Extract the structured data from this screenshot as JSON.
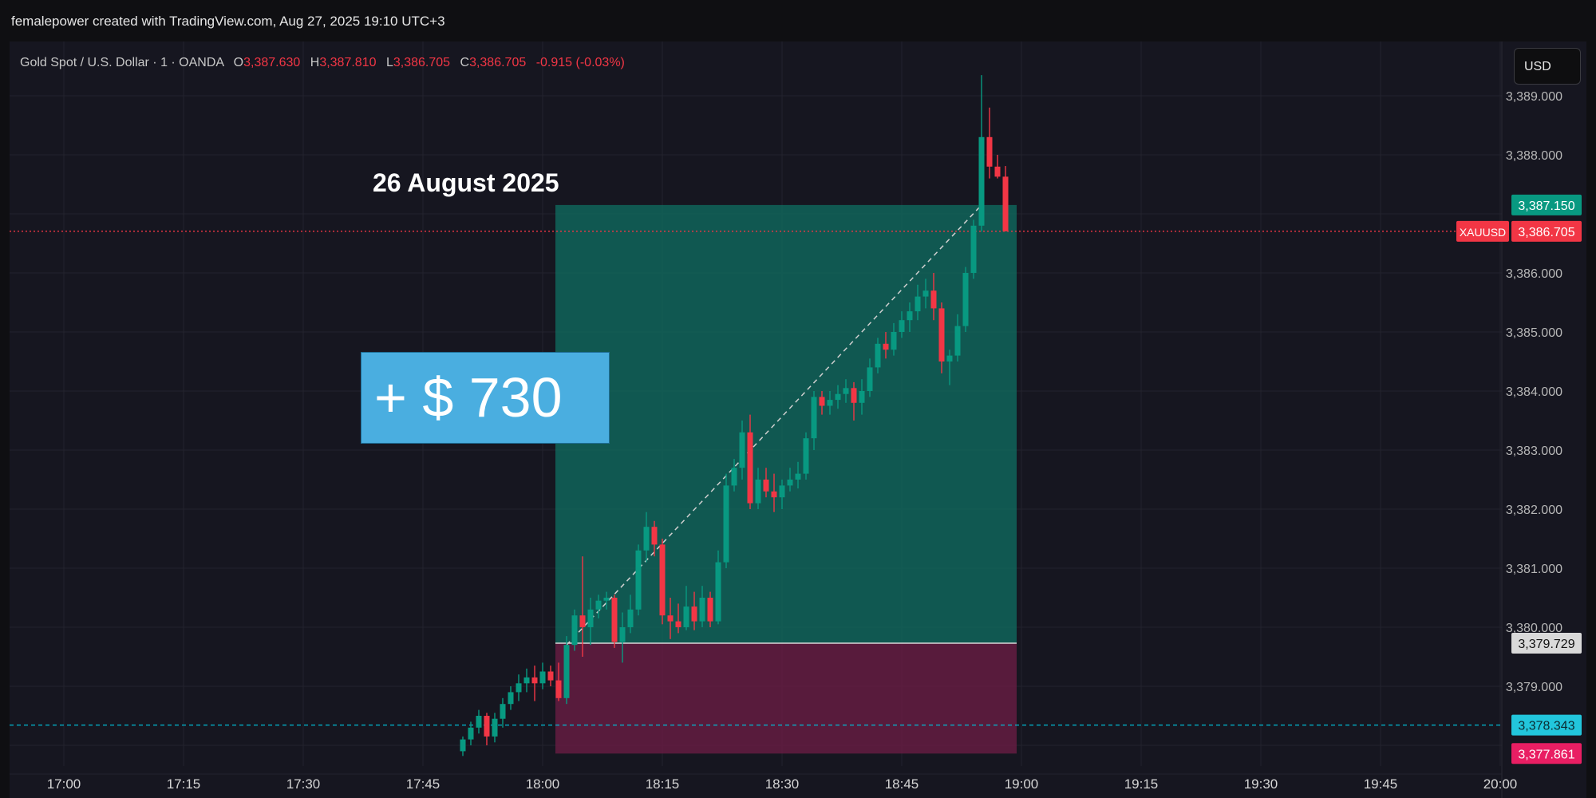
{
  "header": {
    "credit": "femalepower created with TradingView.com, Aug 27, 2025 19:10 UTC+3"
  },
  "legend": {
    "symbol": "Gold Spot / U.S. Dollar · 1 · OANDA",
    "o_label": "O",
    "o_value": "3,387.630",
    "h_label": "H",
    "h_value": "3,387.810",
    "l_label": "L",
    "l_value": "3,386.705",
    "c_label": "C",
    "c_value": "3,386.705",
    "change": "-0.915 (-0.03%)"
  },
  "currency_button": "USD",
  "annotations": {
    "date_title": "26 August 2025",
    "profit_badge": "+ $ 730"
  },
  "colors": {
    "up": "#089981",
    "down": "#f23645",
    "profit_zone": "#0f6b5f",
    "loss_zone": "#6b1e44",
    "cyan_line": "#00bcd4",
    "magenta_label": "#e91e63"
  },
  "chart_data": {
    "type": "candlestick",
    "symbol": "XAUUSD",
    "x_ticks": [
      "17:00",
      "17:15",
      "17:30",
      "17:45",
      "18:00",
      "18:15",
      "18:30",
      "18:45",
      "19:00",
      "19:15",
      "19:30",
      "19:45",
      "20:00"
    ],
    "y_ticks": [
      "3,389.000",
      "3,388.000",
      "3,386.000",
      "3,385.000",
      "3,384.000",
      "3,383.000",
      "3,382.000",
      "3,381.000",
      "3,380.000",
      "3,379.000"
    ],
    "ylim": [
      3377.7,
      3389.6
    ],
    "price_labels": [
      {
        "text": "3,387.150",
        "value": 3387.15,
        "style": "up"
      },
      {
        "text": "3,386.705",
        "value": 3386.705,
        "style": "down",
        "tag": "XAUUSD"
      },
      {
        "text": "3,379.729",
        "value": 3379.729,
        "style": "neutral"
      },
      {
        "text": "3,378.343",
        "value": 3378.343,
        "style": "cyan"
      },
      {
        "text": "3,377.861",
        "value": 3377.861,
        "style": "magenta"
      }
    ],
    "position": {
      "type": "long",
      "entry": 3379.729,
      "target": 3387.15,
      "stop": 3377.861,
      "start_time": "18:02",
      "end_time": "18:59"
    },
    "reference_lines": [
      {
        "name": "last-price",
        "value": 3386.705,
        "style": "red-dotted"
      },
      {
        "name": "cyan-level",
        "value": 3378.343,
        "style": "cyan-dashed"
      }
    ],
    "candles": [
      [
        "17:50",
        3377.9,
        3378.15,
        3377.82,
        3378.1
      ],
      [
        "17:51",
        3378.1,
        3378.4,
        3378.0,
        3378.3
      ],
      [
        "17:52",
        3378.3,
        3378.6,
        3378.2,
        3378.5
      ],
      [
        "17:53",
        3378.5,
        3378.55,
        3378.0,
        3378.15
      ],
      [
        "17:54",
        3378.15,
        3378.55,
        3378.05,
        3378.45
      ],
      [
        "17:55",
        3378.45,
        3378.8,
        3378.3,
        3378.7
      ],
      [
        "17:56",
        3378.7,
        3379.0,
        3378.6,
        3378.9
      ],
      [
        "17:57",
        3378.9,
        3379.2,
        3378.75,
        3379.05
      ],
      [
        "17:58",
        3379.05,
        3379.3,
        3378.9,
        3379.15
      ],
      [
        "17:59",
        3379.15,
        3379.35,
        3378.75,
        3379.05
      ],
      [
        "18:00",
        3379.05,
        3379.4,
        3378.95,
        3379.25
      ],
      [
        "18:01",
        3379.25,
        3379.35,
        3379.0,
        3379.1
      ],
      [
        "18:02",
        3379.1,
        3379.4,
        3378.75,
        3378.8
      ],
      [
        "18:03",
        3378.8,
        3379.85,
        3378.7,
        3379.7
      ],
      [
        "18:04",
        3379.7,
        3380.3,
        3379.6,
        3380.2
      ],
      [
        "18:05",
        3380.2,
        3381.2,
        3379.5,
        3380.0
      ],
      [
        "18:06",
        3380.0,
        3380.5,
        3379.7,
        3380.3
      ],
      [
        "18:07",
        3380.3,
        3380.55,
        3380.15,
        3380.45
      ],
      [
        "18:08",
        3380.45,
        3380.6,
        3380.3,
        3380.5
      ],
      [
        "18:09",
        3380.5,
        3380.55,
        3379.65,
        3379.75
      ],
      [
        "18:10",
        3379.75,
        3380.25,
        3379.4,
        3380.0
      ],
      [
        "18:11",
        3380.0,
        3380.55,
        3379.9,
        3380.3
      ],
      [
        "18:12",
        3380.3,
        3381.4,
        3380.2,
        3381.3
      ],
      [
        "18:13",
        3381.3,
        3381.95,
        3381.1,
        3381.7
      ],
      [
        "18:14",
        3381.7,
        3381.8,
        3381.2,
        3381.4
      ],
      [
        "18:15",
        3381.4,
        3381.5,
        3380.05,
        3380.2
      ],
      [
        "18:16",
        3380.2,
        3380.5,
        3379.8,
        3380.1
      ],
      [
        "18:17",
        3380.1,
        3380.4,
        3379.9,
        3380.0
      ],
      [
        "18:18",
        3380.0,
        3380.7,
        3379.95,
        3380.35
      ],
      [
        "18:19",
        3380.35,
        3380.6,
        3379.95,
        3380.1
      ],
      [
        "18:20",
        3380.1,
        3380.7,
        3380.0,
        3380.5
      ],
      [
        "18:21",
        3380.5,
        3380.6,
        3380.0,
        3380.1
      ],
      [
        "18:22",
        3380.1,
        3381.3,
        3380.05,
        3381.1
      ],
      [
        "18:23",
        3381.1,
        3382.6,
        3381.0,
        3382.4
      ],
      [
        "18:24",
        3382.4,
        3382.85,
        3382.3,
        3382.7
      ],
      [
        "18:25",
        3382.7,
        3383.5,
        3382.5,
        3383.3
      ],
      [
        "18:26",
        3383.3,
        3383.6,
        3382.0,
        3382.1
      ],
      [
        "18:27",
        3382.1,
        3382.7,
        3382.0,
        3382.5
      ],
      [
        "18:28",
        3382.5,
        3382.7,
        3382.2,
        3382.3
      ],
      [
        "18:29",
        3382.3,
        3382.6,
        3381.95,
        3382.2
      ],
      [
        "18:30",
        3382.2,
        3382.5,
        3382.0,
        3382.4
      ],
      [
        "18:31",
        3382.4,
        3382.7,
        3382.3,
        3382.5
      ],
      [
        "18:32",
        3382.5,
        3382.8,
        3382.35,
        3382.6
      ],
      [
        "18:33",
        3382.6,
        3383.3,
        3382.5,
        3383.2
      ],
      [
        "18:34",
        3383.2,
        3384.0,
        3383.0,
        3383.9
      ],
      [
        "18:35",
        3383.9,
        3384.0,
        3383.6,
        3383.75
      ],
      [
        "18:36",
        3383.75,
        3384.0,
        3383.6,
        3383.85
      ],
      [
        "18:37",
        3383.85,
        3384.1,
        3383.7,
        3383.95
      ],
      [
        "18:38",
        3383.95,
        3384.2,
        3383.8,
        3384.05
      ],
      [
        "18:39",
        3384.05,
        3384.15,
        3383.5,
        3383.8
      ],
      [
        "18:40",
        3383.8,
        3384.2,
        3383.6,
        3384.0
      ],
      [
        "18:41",
        3384.0,
        3384.55,
        3383.9,
        3384.4
      ],
      [
        "18:42",
        3384.4,
        3384.9,
        3384.3,
        3384.8
      ],
      [
        "18:43",
        3384.8,
        3385.0,
        3384.55,
        3384.7
      ],
      [
        "18:44",
        3384.7,
        3385.15,
        3384.6,
        3385.0
      ],
      [
        "18:45",
        3385.0,
        3385.35,
        3384.9,
        3385.2
      ],
      [
        "18:46",
        3385.2,
        3385.5,
        3385.0,
        3385.35
      ],
      [
        "18:47",
        3385.35,
        3385.8,
        3385.2,
        3385.6
      ],
      [
        "18:48",
        3385.6,
        3385.9,
        3385.4,
        3385.7
      ],
      [
        "18:49",
        3385.7,
        3386.0,
        3385.2,
        3385.4
      ],
      [
        "18:50",
        3385.4,
        3385.5,
        3384.3,
        3384.5
      ],
      [
        "18:51",
        3384.5,
        3384.7,
        3384.1,
        3384.6
      ],
      [
        "18:52",
        3384.6,
        3385.3,
        3384.5,
        3385.1
      ],
      [
        "18:53",
        3385.1,
        3386.1,
        3385.0,
        3386.0
      ],
      [
        "18:54",
        3386.0,
        3386.9,
        3385.9,
        3386.8
      ],
      [
        "18:55",
        3386.8,
        3389.35,
        3386.7,
        3388.3
      ],
      [
        "18:56",
        3388.3,
        3388.8,
        3387.6,
        3387.8
      ],
      [
        "18:57",
        3387.8,
        3388.0,
        3387.6,
        3387.63
      ],
      [
        "18:58",
        3387.63,
        3387.81,
        3386.705,
        3386.705
      ]
    ]
  }
}
